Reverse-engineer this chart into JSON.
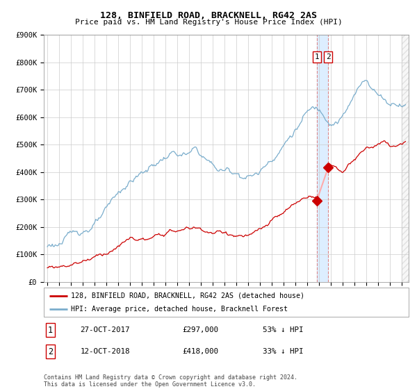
{
  "title": "128, BINFIELD ROAD, BRACKNELL, RG42 2AS",
  "subtitle": "Price paid vs. HM Land Registry's House Price Index (HPI)",
  "ylabel_values": [
    "£0",
    "£100K",
    "£200K",
    "£300K",
    "£400K",
    "£500K",
    "£600K",
    "£700K",
    "£800K",
    "£900K"
  ],
  "ylim": [
    0,
    900000
  ],
  "xlim_start": 1994.7,
  "xlim_end": 2025.6,
  "legend_label_red": "128, BINFIELD ROAD, BRACKNELL, RG42 2AS (detached house)",
  "legend_label_blue": "HPI: Average price, detached house, Bracknell Forest",
  "transaction1_date": "27-OCT-2017",
  "transaction1_price": "£297,000",
  "transaction1_pct": "53% ↓ HPI",
  "transaction2_date": "12-OCT-2018",
  "transaction2_price": "£418,000",
  "transaction2_pct": "33% ↓ HPI",
  "footer": "Contains HM Land Registry data © Crown copyright and database right 2024.\nThis data is licensed under the Open Government Licence v3.0.",
  "red_color": "#cc0000",
  "blue_color": "#7aadcc",
  "dashed_color": "#dd8888",
  "highlight_color": "#ddeeff",
  "grid_color": "#cccccc",
  "t1_year": 2017.82,
  "t2_year": 2018.79,
  "t1_price": 297000,
  "t2_price": 418000,
  "background_color": "#ffffff",
  "hatch_start": 2025.0
}
